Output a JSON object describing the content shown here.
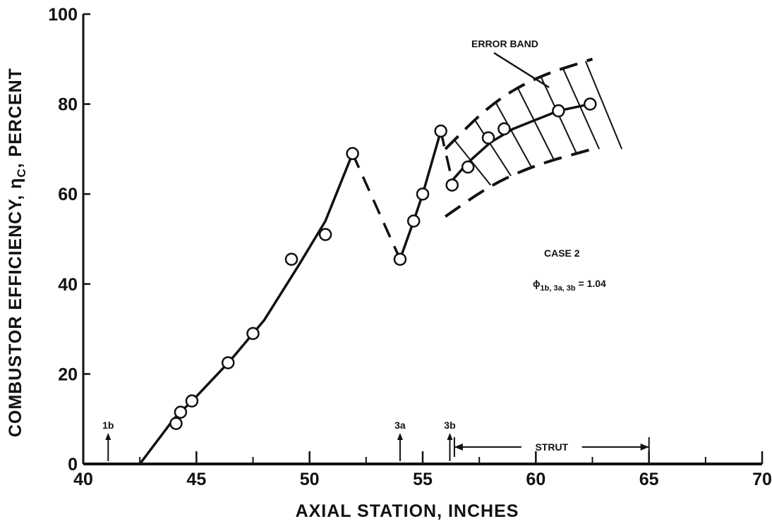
{
  "chart_data": {
    "type": "line",
    "title": "",
    "xlabel": "AXIAL STATION, INCHES",
    "ylabel_main": "COMBUSTOR EFFICIENCY, ",
    "ylabel_symbol": "η",
    "ylabel_sub": "C",
    "ylabel_tail": ", PERCENT",
    "xlim": [
      40,
      70
    ],
    "ylim": [
      0,
      100
    ],
    "x_ticks": [
      40,
      45,
      50,
      55,
      60,
      65,
      70
    ],
    "x_tick_labels": [
      "40",
      "45",
      "50",
      "55",
      "60",
      "65",
      "70"
    ],
    "y_ticks": [
      0,
      20,
      40,
      60,
      80,
      100
    ],
    "y_tick_labels": [
      "0",
      "20",
      "40",
      "60",
      "80",
      "100"
    ],
    "grid": false,
    "series": [
      {
        "style": "markers",
        "marker": "open-circle",
        "x": [
          44.1,
          44.3,
          44.8,
          46.4,
          47.5,
          49.2,
          50.7,
          51.9,
          54.0,
          54.6,
          55.0,
          55.8,
          56.3,
          57.0,
          57.9,
          58.6,
          61.0,
          62.4
        ],
        "y": [
          9,
          11.5,
          14,
          22.5,
          29,
          45.5,
          51,
          69,
          45.5,
          54,
          60,
          74,
          62,
          66,
          72.5,
          74.5,
          78.5,
          80
        ]
      },
      {
        "style": "fit-curve",
        "x": [
          42.5,
          44.0,
          45.0,
          46.5,
          48.0,
          49.5,
          50.7,
          51.9,
          54.0,
          54.6,
          55.0,
          55.8,
          56.3,
          57.0,
          58.0,
          59.0,
          60.0,
          61.0,
          62.4
        ],
        "y": [
          0,
          10,
          15,
          23,
          32,
          44,
          54,
          69,
          45.5,
          54,
          60,
          74,
          63,
          67,
          71.5,
          74.5,
          76.5,
          78.5,
          80
        ],
        "solid_ranges": [
          [
            42.5,
            51.9
          ],
          [
            54.0,
            55.8
          ],
          [
            56.3,
            62.4
          ]
        ],
        "dashed_ranges": [
          [
            51.9,
            54.0
          ],
          [
            55.8,
            56.3
          ]
        ]
      }
    ],
    "error_band": {
      "label": "ERROR BAND",
      "upper": {
        "x": [
          56.0,
          58.0,
          60.0,
          62.5
        ],
        "y": [
          70,
          80,
          86,
          90
        ]
      },
      "lower": {
        "x": [
          56.0,
          58.0,
          60.0,
          62.5
        ],
        "y": [
          55,
          62,
          66.5,
          70
        ]
      }
    },
    "station_markers": [
      {
        "label": "1b",
        "x": 41.1
      },
      {
        "label": "3a",
        "x": 54.0
      },
      {
        "label": "3b",
        "x": 56.2
      }
    ],
    "strut": {
      "label": "STRUT",
      "x_start": 56.4,
      "x_end": 65.0
    },
    "annotations": {
      "case_label": "CASE 2",
      "phi_symbol": "ϕ",
      "phi_subscript": "1b, 3a, 3b",
      "phi_value": " = 1.04"
    }
  }
}
